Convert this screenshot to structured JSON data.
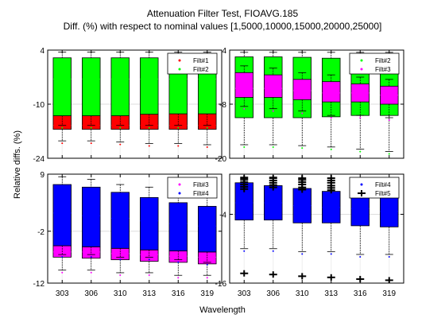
{
  "chart_data": {
    "type": "box",
    "title": "Attenuation Filter Test, FIOAVG.185",
    "subtitle": "Diff. (%) with respect to nominal values [1,5000,10000,15000,20000,25000]",
    "ylabel": "Relative diffs. (%)",
    "xlabel": "Wavelength",
    "categories": [
      "303",
      "306",
      "310",
      "313",
      "316",
      "319"
    ],
    "panels": [
      {
        "id": "top-left",
        "ylim": [
          -24,
          4
        ],
        "yticks": [
          "4",
          "-10",
          "-24"
        ],
        "legend": [
          "Filt#1",
          "Filt#2"
        ],
        "series": [
          {
            "name": "Filt#1",
            "color": "#ff0000",
            "q1": [
              -16.5,
              -16.5,
              -16.5,
              -16.5,
              -16.5,
              -16.5
            ],
            "median": [
              -15.5,
              -15.5,
              -15.5,
              -15.5,
              -15.5,
              -15.5
            ],
            "q3": [
              -13.0,
              -13.0,
              -13.0,
              -12.6,
              -12.5,
              -12.5
            ],
            "wlo": [
              -19.5,
              -19.5,
              -19.8,
              -20.2,
              -20.2,
              -20.5
            ],
            "whi": [
              -11.5,
              -11.5,
              -11.5,
              -11.5,
              -11.5,
              -11.5
            ]
          },
          {
            "name": "Filt#2",
            "color": "#00ff00",
            "q1": [
              -13.0,
              -13.0,
              -13.0,
              -12.6,
              -12.5,
              -12.5
            ],
            "median": [
              -3.5,
              -3.5,
              -3.5,
              -3.5,
              -3.5,
              -3.5
            ],
            "q3": [
              2.0,
              2.0,
              2.0,
              2.0,
              2.0,
              2.0
            ],
            "wlo": [
              -15.5,
              -15.5,
              -15.5,
              -15.5,
              -15.5,
              -15.5
            ],
            "whi": [
              3.5,
              3.5,
              3.5,
              3.5,
              3.5,
              3.5
            ]
          }
        ]
      },
      {
        "id": "top-right",
        "ylim": [
          -20,
          4
        ],
        "yticks": [
          "4",
          "-8",
          "-20"
        ],
        "legend": [
          "Filt#2",
          "Filt#3"
        ],
        "series": [
          {
            "name": "Filt#2",
            "color": "#00ff00",
            "q1": [
              -11.0,
              -11.0,
              -11.0,
              -10.8,
              -10.5,
              -10.5
            ],
            "median": [
              -5.5,
              -5.5,
              -5.5,
              -5.5,
              -5.5,
              -5.5
            ],
            "q3": [
              2.5,
              2.5,
              2.4,
              2.2,
              2.1,
              2.0
            ],
            "wlo": [
              -17.0,
              -17.0,
              -17.2,
              -17.5,
              -18.0,
              -18.5
            ],
            "whi": [
              3.5,
              3.5,
              3.5,
              3.5,
              3.5,
              3.5
            ]
          },
          {
            "name": "Filt#3",
            "color": "#ff00ff",
            "q1": [
              -6.5,
              -6.5,
              -7.0,
              -7.5,
              -7.5,
              -8.0
            ],
            "median": [
              -4.5,
              -4.5,
              -5.0,
              -5.5,
              -5.5,
              -6.0
            ],
            "q3": [
              -1.0,
              -1.5,
              -2.5,
              -3.0,
              -3.5,
              -4.0
            ],
            "wlo": [
              -8.5,
              -9.0,
              -9.5,
              -10.5,
              -10.5,
              -11.0
            ],
            "whi": [
              0.5,
              0.0,
              -1.0,
              -1.5,
              -2.0,
              -2.5
            ]
          }
        ]
      },
      {
        "id": "bottom-left",
        "ylim": [
          -12,
          9
        ],
        "yticks": [
          "9",
          "-2",
          "-12"
        ],
        "legend": [
          "Filt#3",
          "Filt#4"
        ],
        "series": [
          {
            "name": "Filt#3",
            "color": "#ff00ff",
            "q1": [
              -7.0,
              -7.2,
              -7.5,
              -7.8,
              -8.0,
              -8.3
            ],
            "median": [
              -6.0,
              -6.0,
              -6.3,
              -6.5,
              -6.8,
              -7.0
            ],
            "q3": [
              -4.8,
              -5.0,
              -5.3,
              -5.6,
              -5.8,
              -6.0
            ],
            "wlo": [
              -9.5,
              -9.5,
              -10.0,
              -10.0,
              -10.5,
              -10.5
            ],
            "whi": [
              -4.0,
              -4.3,
              -4.5,
              -4.8,
              -5.0,
              -5.3
            ]
          },
          {
            "name": "Filt#4",
            "color": "#0000ff",
            "q1": [
              -4.8,
              -5.0,
              -5.3,
              -5.6,
              -5.8,
              -6.0
            ],
            "median": [
              1.5,
              1.0,
              0.5,
              0.0,
              -0.5,
              -1.0
            ],
            "q3": [
              7.0,
              6.5,
              5.5,
              4.5,
              3.5,
              2.8
            ],
            "wlo": [
              -6.5,
              -6.5,
              -7.0,
              -7.0,
              -7.5,
              -8.0
            ],
            "whi": [
              8.5,
              8.0,
              7.0,
              6.5,
              5.5,
              5.0
            ]
          }
        ]
      },
      {
        "id": "bottom-right",
        "ylim": [
          -16,
          3
        ],
        "yticks": [
          "-4",
          "-16"
        ],
        "legend": [
          "Filt#4",
          "Filt#5"
        ],
        "series": [
          {
            "name": "Filt#4",
            "color": "#0000ff",
            "q1": [
              -5.0,
              -5.0,
              -5.5,
              -5.5,
              -6.0,
              -6.2
            ],
            "median": [
              -2.0,
              -2.0,
              -2.5,
              -2.8,
              -3.0,
              -3.5
            ],
            "q3": [
              1.5,
              1.0,
              0.5,
              0.0,
              -0.5,
              -0.8
            ],
            "wlo": [
              -10.0,
              -10.0,
              -10.5,
              -10.5,
              -11.0,
              -11.0
            ],
            "whi": [
              2.5,
              2.5,
              2.0,
              1.5,
              1.0,
              1.0
            ]
          },
          {
            "name": "Filt#5",
            "color": "#000000",
            "outliers": [
              [
                2.3,
                2.0,
                1.6,
                1.2,
                0.8,
                0.4,
                -14.3
              ],
              [
                2.3,
                1.9,
                1.5,
                1.1,
                0.7,
                -14.5
              ],
              [
                2.3,
                2.0,
                1.6,
                1.2,
                0.7,
                0.3,
                -14.8
              ],
              [
                2.3,
                1.9,
                1.5,
                1.0,
                0.6,
                0.2,
                -15.0
              ],
              [
                -15.3
              ],
              [
                -15.5
              ]
            ]
          }
        ]
      }
    ]
  }
}
